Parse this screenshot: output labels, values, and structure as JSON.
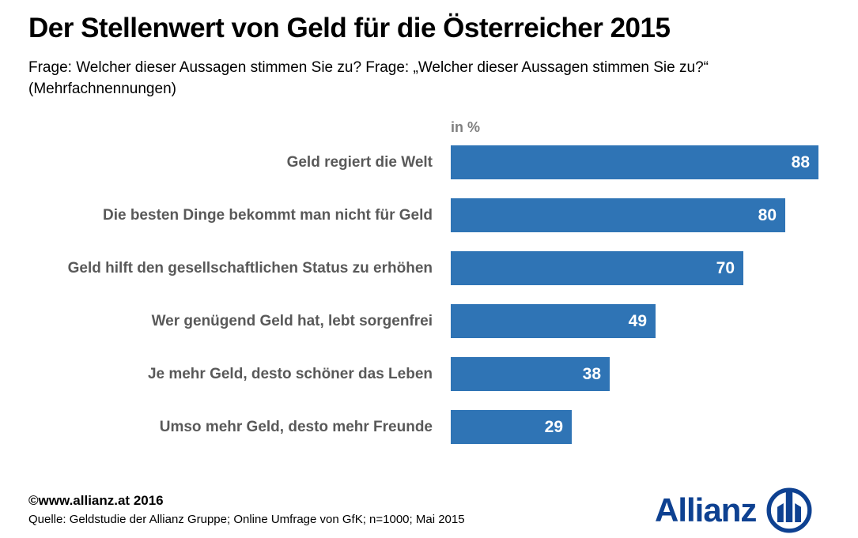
{
  "title": "Der Stellenwert von Geld für die Österreicher 2015",
  "subtitle_line1": "Frage: Welcher dieser Aussagen stimmen Sie zu? Frage: „Welcher dieser Aussagen stimmen Sie zu?“",
  "subtitle_line2": "(Mehrfachnennungen)",
  "unit_label": "in %",
  "chart_data": {
    "type": "bar",
    "orientation": "horizontal",
    "unit": "%",
    "title": "Der Stellenwert von Geld für die Österreicher 2015",
    "categories": [
      "Geld regiert die Welt",
      "Die besten Dinge bekommt man nicht für Geld",
      "Geld hilft den gesellschaftlichen Status zu erhöhen",
      "Wer genügend Geld hat, lebt sorgenfrei",
      "Je mehr Geld, desto schöner das Leben",
      "Umso mehr Geld, desto mehr Freunde"
    ],
    "values": [
      88,
      80,
      70,
      49,
      38,
      29
    ],
    "xlim": [
      0,
      88
    ],
    "grid": false,
    "legend": false,
    "value_labels": "inside-end",
    "bar_color": "#2f74b5",
    "value_label_color": "#ffffff",
    "category_label_color": "#595959"
  },
  "footer": {
    "copyright": "©www.allianz.at 2016",
    "source": "Quelle: Geldstudie der Allianz Gruppe; Online Umfrage von GfK; n=1000; Mai 2015"
  },
  "brand": {
    "wordmark": "Allianz",
    "logo_icon": "allianz-circle-bars-icon",
    "color": "#0e4191"
  }
}
